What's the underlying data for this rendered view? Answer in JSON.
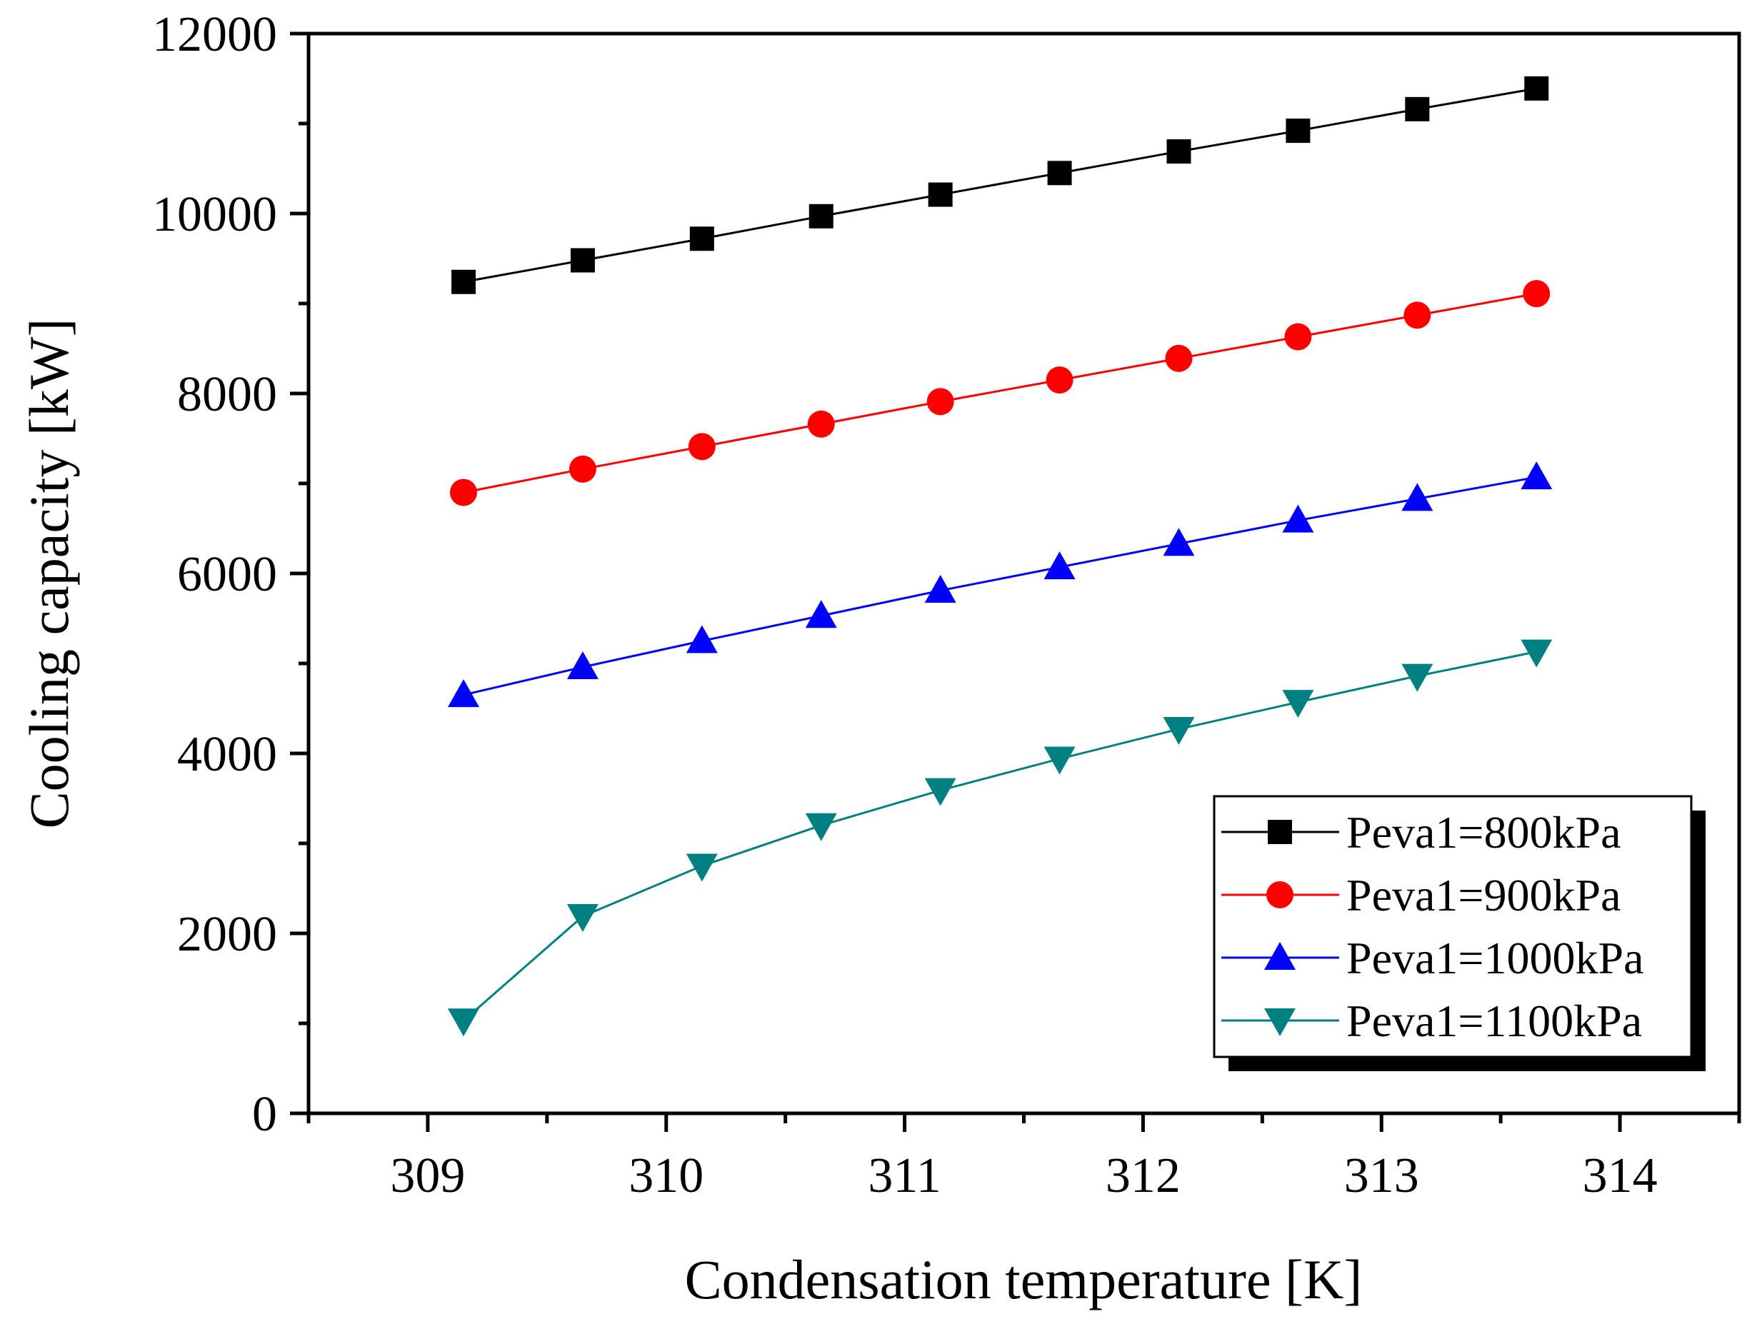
{
  "chart_data": {
    "type": "line",
    "title": "",
    "xlabel": "Condensation temperature [K]",
    "ylabel": "Cooling capacity [kW]",
    "xlim": [
      308.5,
      314.5
    ],
    "ylim": [
      0,
      12000
    ],
    "x_ticks": [
      309,
      310,
      311,
      312,
      313,
      314
    ],
    "x_tick_labels": [
      "309",
      "310",
      "311",
      "312",
      "313",
      "314"
    ],
    "y_ticks": [
      0,
      2000,
      4000,
      6000,
      8000,
      10000,
      12000
    ],
    "y_tick_labels": [
      "0",
      "2000",
      "4000",
      "6000",
      "8000",
      "10000",
      "12000"
    ],
    "grid": false,
    "legend_position": "bottom-right",
    "x": [
      309.15,
      309.65,
      310.15,
      310.65,
      311.15,
      311.65,
      312.15,
      312.65,
      313.15,
      313.65
    ],
    "series": [
      {
        "name": "Peva1=800kPa",
        "color": "#000000",
        "marker": "square",
        "values": [
          9240,
          9480,
          9720,
          9970,
          10210,
          10450,
          10690,
          10920,
          11160,
          11390
        ]
      },
      {
        "name": "Peva1=900kPa",
        "color": "#ff0000",
        "marker": "circle",
        "values": [
          6900,
          7160,
          7410,
          7660,
          7910,
          8150,
          8390,
          8630,
          8870,
          9110
        ]
      },
      {
        "name": "Peva1=1000kPa",
        "color": "#0000ff",
        "marker": "triangle-up",
        "values": [
          4650,
          4960,
          5250,
          5530,
          5810,
          6070,
          6330,
          6590,
          6830,
          7070
        ]
      },
      {
        "name": "Peva1=1100kPa",
        "color": "#008080",
        "marker": "triangle-down",
        "values": [
          1030,
          2190,
          2750,
          3200,
          3590,
          3940,
          4270,
          4570,
          4860,
          5130
        ]
      }
    ]
  }
}
